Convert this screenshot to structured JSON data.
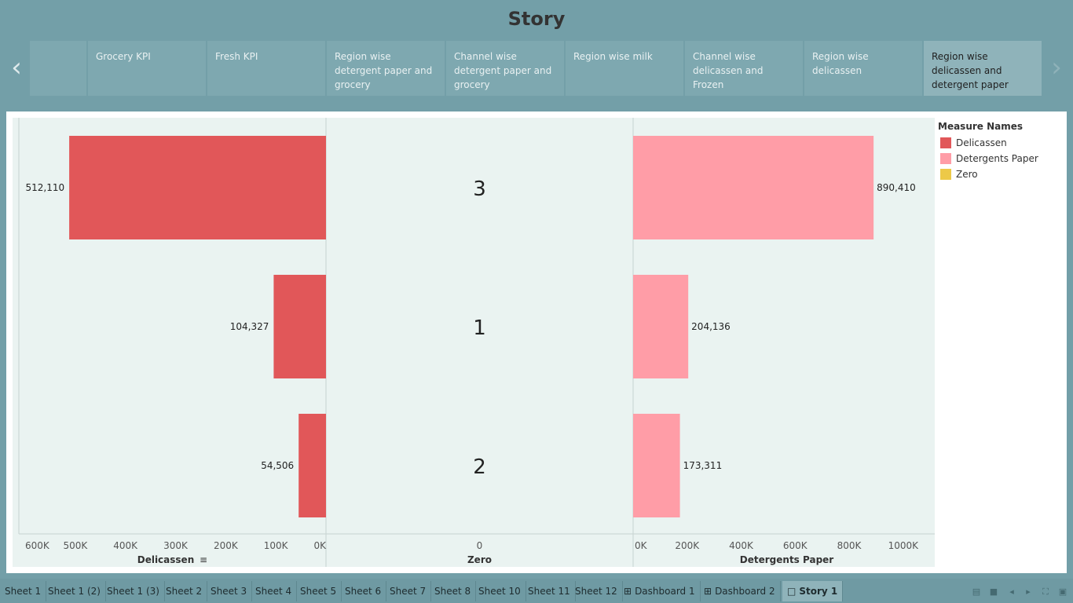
{
  "story": {
    "title": "Story",
    "points": [
      {
        "label": ""
      },
      {
        "label": "Grocery KPI"
      },
      {
        "label": "Fresh KPI"
      },
      {
        "label": "Region wise detergent paper and grocery"
      },
      {
        "label": "Channel wise detergent paper and grocery"
      },
      {
        "label": "Region wise milk"
      },
      {
        "label": "Channel wise delicassen and Frozen"
      },
      {
        "label": "Region wise delicassen"
      },
      {
        "label": "Region wise delicassen and detergent paper",
        "active": true
      }
    ],
    "prev_icon": "chevron-left-icon",
    "next_icon": "chevron-right-icon"
  },
  "legend": {
    "title": "Measure Names",
    "items": [
      {
        "label": "Delicassen",
        "color": "#e15759"
      },
      {
        "label": "Detergents Paper",
        "color": "#ff9da7"
      },
      {
        "label": "Zero",
        "color": "#edc948"
      }
    ]
  },
  "chart_data": {
    "type": "bar",
    "orientation": "horizontal",
    "categories": [
      "3",
      "1",
      "2"
    ],
    "panels": [
      {
        "name": "Delicassen",
        "xlabel": "Delicassen",
        "direction": "reversed",
        "xlim": [
          0,
          600000
        ],
        "ticks": [
          600000,
          500000,
          400000,
          300000,
          200000,
          100000,
          0
        ],
        "tick_labels": [
          "600K",
          "500K",
          "400K",
          "300K",
          "200K",
          "100K",
          "0K"
        ],
        "values": [
          512110,
          104327,
          54506
        ],
        "value_labels": [
          "512,110",
          "104,327",
          "54,506"
        ],
        "color": "#e15759",
        "sorted": true
      },
      {
        "name": "Zero",
        "xlabel": "Zero",
        "ticks": [
          0
        ],
        "tick_labels": [
          "0"
        ],
        "values": [
          0,
          0,
          0
        ],
        "category_labels": [
          "3",
          "1",
          "2"
        ]
      },
      {
        "name": "Detergents Paper",
        "xlabel": "Detergents Paper",
        "xlim": [
          0,
          1050000
        ],
        "ticks": [
          0,
          200000,
          400000,
          600000,
          800000,
          1000000
        ],
        "tick_labels": [
          "0K",
          "200K",
          "400K",
          "600K",
          "800K",
          "1000K"
        ],
        "values": [
          890410,
          204136,
          173311
        ],
        "value_labels": [
          "890,410",
          "204,136",
          "173,311"
        ],
        "color": "#ff9da7"
      }
    ],
    "grid": false,
    "legend_position": "right"
  },
  "tabs": [
    {
      "label": "Sheet 1"
    },
    {
      "label": "Sheet 1 (2)"
    },
    {
      "label": "Sheet 1 (3)"
    },
    {
      "label": "Sheet 2"
    },
    {
      "label": "Sheet 3"
    },
    {
      "label": "Sheet 4"
    },
    {
      "label": "Sheet 5"
    },
    {
      "label": "Sheet 6"
    },
    {
      "label": "Sheet 7"
    },
    {
      "label": "Sheet 8"
    },
    {
      "label": "Sheet 10"
    },
    {
      "label": "Sheet 11"
    },
    {
      "label": "Sheet 12"
    },
    {
      "label": "Dashboard 1",
      "icon": "dashboard-grid-icon"
    },
    {
      "label": "Dashboard 2",
      "icon": "dashboard-grid-icon"
    },
    {
      "label": "Story 1",
      "icon": "story-book-icon",
      "active": true
    }
  ],
  "controls": [
    "grid-view-icon",
    "single-view-icon",
    "prev-tab-icon",
    "next-tab-icon",
    "fullscreen-icon",
    "presentation-icon"
  ]
}
